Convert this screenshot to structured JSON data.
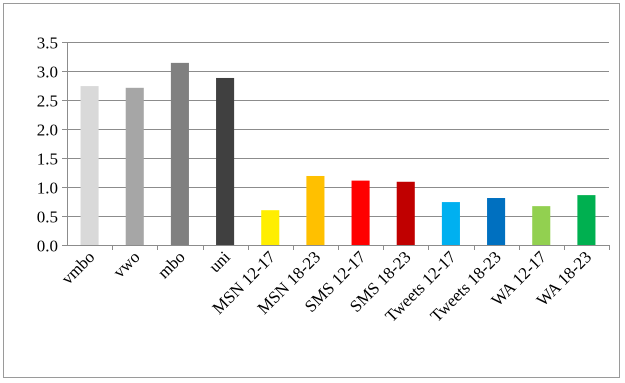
{
  "chart_data": {
    "type": "bar",
    "title": "",
    "xlabel": "",
    "ylabel": "",
    "ylim": [
      0,
      3.5
    ],
    "ytick_step": 0.5,
    "yticks": [
      "0.0",
      "0.5",
      "1.0",
      "1.5",
      "2.0",
      "2.5",
      "3.0",
      "3.5"
    ],
    "grid": "horizontal",
    "legend": "none",
    "categories": [
      "vmbo",
      "vwo",
      "mbo",
      "uni",
      "MSN 12-17",
      "MSN 18-23",
      "SMS 12-17",
      "SMS 18-23",
      "Tweets 12-17",
      "Tweets 18-23",
      "WA 12-17",
      "WA 18-23"
    ],
    "values": [
      2.74,
      2.71,
      3.14,
      2.88,
      0.6,
      1.19,
      1.11,
      1.09,
      0.74,
      0.81,
      0.67,
      0.86
    ],
    "colors": [
      "#d9d9d9",
      "#a6a6a6",
      "#808080",
      "#404040",
      "#ffee00",
      "#ffc000",
      "#ff0000",
      "#c00000",
      "#00b0f0",
      "#0070c0",
      "#92d050",
      "#00b050"
    ]
  }
}
